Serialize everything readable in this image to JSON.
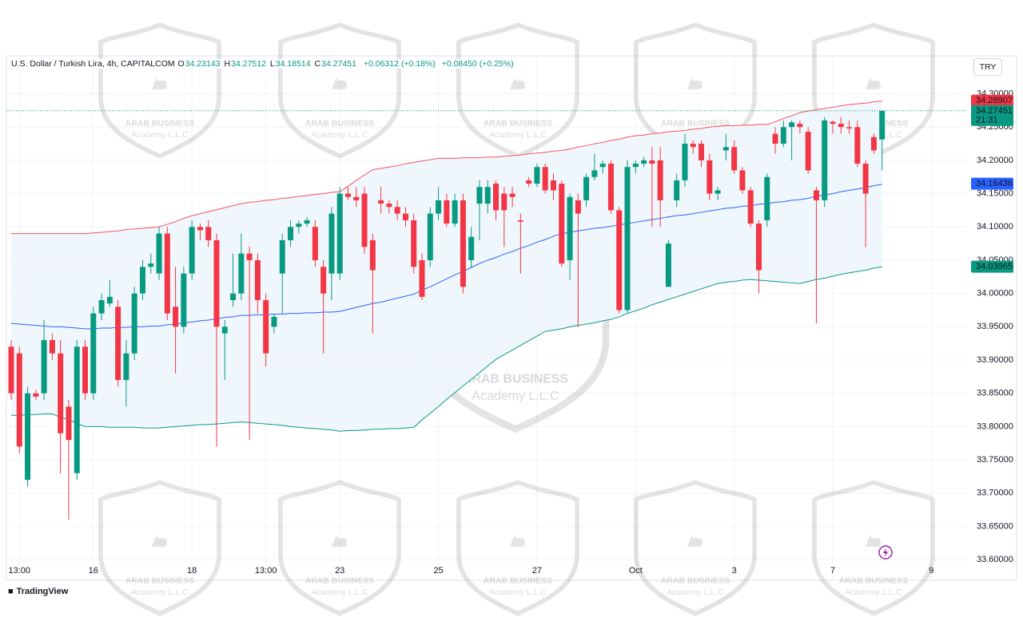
{
  "chart_data": {
    "type": "candlestick",
    "title": "U.S. Dollar / Turkish Lira, 4h, CAPITALCOM",
    "ohlc": [
      {
        "label": "O",
        "value": 34.23143
      },
      {
        "label": "H",
        "value": 34.27512
      },
      {
        "label": "L",
        "value": 34.18514
      },
      {
        "label": "C",
        "value": 34.27451
      }
    ],
    "changes": [
      "+0.06312 (+0.18%)",
      "+0.08450 (+0.25%)"
    ],
    "currency": "TRY",
    "brand": "TradingView",
    "watermark": {
      "logo": "AB",
      "name": "ARAB BUSINESS",
      "sub": "Academy L.L.C"
    },
    "categories": [
      null,
      "13:00",
      null,
      null,
      null,
      null,
      null,
      null,
      null,
      null,
      "16",
      null,
      null,
      null,
      null,
      null,
      null,
      null,
      null,
      null,
      null,
      null,
      "18",
      null,
      null,
      null,
      null,
      null,
      null,
      null,
      null,
      "13:00",
      null,
      null,
      null,
      null,
      null,
      null,
      null,
      null,
      "23",
      null,
      null,
      null,
      null,
      null,
      null,
      null,
      null,
      null,
      null,
      null,
      "25",
      null,
      null,
      null,
      null,
      null,
      null,
      null,
      null,
      null,
      null,
      null,
      "27",
      null,
      null,
      null,
      null,
      null,
      null,
      null,
      null,
      null,
      null,
      null,
      "Oct",
      null,
      null,
      null,
      null,
      null,
      null,
      null,
      null,
      null,
      null,
      null,
      "3",
      null,
      null,
      null,
      null,
      null,
      null,
      null,
      null,
      null,
      null,
      null,
      "7",
      null,
      null,
      null,
      null,
      null,
      null,
      null,
      null,
      null,
      null,
      null,
      "9"
    ],
    "candles": {
      "up_color": "#089981",
      "down_color": "#f23645",
      "open": [
        33.92,
        33.91,
        33.72,
        33.85,
        33.85,
        33.93,
        33.91,
        33.83,
        33.73,
        33.92,
        33.85,
        33.97,
        33.985,
        33.98,
        33.87,
        33.91,
        34.0,
        34.04,
        34.03,
        34.09,
        33.98,
        33.95,
        34.03,
        34.1,
        34.1,
        34.08,
        33.94,
        33.99,
        34.0,
        34.06,
        34.05,
        33.99,
        33.95,
        34.03,
        34.08,
        34.1,
        34.105,
        34.1,
        34.04,
        34.03,
        34.03,
        34.15,
        34.145,
        34.15,
        34.08,
        34.14,
        34.135,
        34.13,
        34.12,
        34.11,
        34.05,
        34.05,
        34.12,
        34.14,
        34.105,
        34.14,
        34.05,
        34.135,
        34.135,
        34.165,
        34.15,
        34.15,
        34.11,
        34.17,
        34.165,
        34.19,
        34.17,
        34.165,
        34.05,
        34.14,
        34.14,
        34.175,
        34.19,
        34.195,
        34.125,
        33.975,
        34.19,
        34.195,
        34.2,
        34.2,
        34.01,
        34.14,
        34.17,
        34.225,
        34.225,
        34.2,
        34.15,
        34.215,
        34.22,
        34.185,
        34.155,
        34.105,
        34.11,
        34.24,
        34.225,
        34.25,
        34.255,
        34.243,
        34.155,
        34.14,
        34.258,
        34.255,
        34.25,
        34.25,
        34.195,
        34.235,
        34.23143,
        null,
        null,
        null,
        null,
        null,
        null
      ],
      "high": [
        33.93,
        33.92,
        33.86,
        33.855,
        33.96,
        33.94,
        33.93,
        33.84,
        33.93,
        33.93,
        33.98,
        34.0,
        34.02,
        33.99,
        33.93,
        34.01,
        34.05,
        34.06,
        34.1,
        34.1,
        34.04,
        34.04,
        34.11,
        34.105,
        34.11,
        34.09,
        33.96,
        34.06,
        34.09,
        34.07,
        34.06,
        34.0,
        33.97,
        34.09,
        34.11,
        34.11,
        34.115,
        34.11,
        34.05,
        34.13,
        34.16,
        34.16,
        34.16,
        34.16,
        34.09,
        34.16,
        34.14,
        34.14,
        34.13,
        34.12,
        34.06,
        34.13,
        34.16,
        34.15,
        34.15,
        34.15,
        34.1,
        34.17,
        34.17,
        34.17,
        34.16,
        34.16,
        34.12,
        34.175,
        34.195,
        34.195,
        34.18,
        34.17,
        34.15,
        34.15,
        34.18,
        34.21,
        34.2,
        34.2,
        34.13,
        34.2,
        34.2,
        34.205,
        34.22,
        34.22,
        34.08,
        34.18,
        34.24,
        34.23,
        34.23,
        34.21,
        34.16,
        34.24,
        34.23,
        34.19,
        34.16,
        34.11,
        34.18,
        34.25,
        34.26,
        34.26,
        34.26,
        34.25,
        34.16,
        34.265,
        34.26,
        34.265,
        34.26,
        34.26,
        34.2,
        34.24,
        34.27512,
        null,
        null,
        null,
        null,
        null,
        null
      ],
      "low": [
        33.84,
        33.76,
        33.71,
        33.84,
        33.84,
        33.9,
        33.73,
        33.66,
        33.72,
        33.84,
        33.84,
        33.96,
        33.98,
        33.86,
        33.83,
        33.9,
        33.99,
        34.03,
        34.02,
        33.96,
        33.88,
        33.94,
        34.02,
        34.08,
        34.07,
        33.77,
        33.87,
        33.98,
        33.99,
        33.78,
        33.97,
        33.89,
        33.94,
        33.97,
        34.07,
        34.09,
        34.1,
        34.04,
        33.91,
        33.99,
        34.02,
        34.14,
        34.13,
        34.06,
        33.94,
        34.12,
        34.12,
        34.11,
        34.1,
        34.03,
        33.99,
        34.04,
        34.11,
        34.1,
        34.1,
        34.0,
        34.04,
        34.08,
        34.12,
        34.11,
        34.07,
        34.13,
        34.03,
        34.16,
        34.16,
        34.15,
        34.14,
        34.04,
        34.02,
        33.95,
        34.13,
        34.17,
        34.18,
        34.12,
        33.97,
        33.97,
        34.18,
        34.19,
        34.1,
        34.1,
        34.01,
        34.13,
        34.16,
        34.21,
        34.19,
        34.14,
        34.14,
        34.2,
        34.18,
        34.15,
        34.1,
        34.0,
        34.1,
        34.21,
        34.22,
        34.2,
        34.24,
        34.18,
        33.955,
        34.13,
        34.24,
        34.24,
        34.24,
        34.19,
        34.07,
        34.21,
        34.18514,
        null,
        null,
        null,
        null,
        null,
        null
      ],
      "close": [
        33.85,
        33.77,
        33.85,
        33.845,
        33.93,
        33.91,
        33.79,
        33.78,
        33.92,
        33.85,
        33.97,
        33.99,
        33.995,
        33.87,
        33.91,
        34.0,
        34.04,
        34.045,
        34.09,
        33.97,
        33.95,
        34.03,
        34.1,
        34.095,
        34.08,
        33.95,
        33.95,
        34.0,
        34.06,
        34.05,
        33.99,
        33.91,
        33.965,
        34.08,
        34.1,
        34.105,
        34.11,
        34.05,
        34.0,
        34.12,
        34.15,
        34.145,
        34.14,
        34.07,
        34.035,
        34.135,
        34.13,
        34.12,
        34.11,
        34.04,
        33.995,
        34.12,
        34.14,
        34.105,
        34.14,
        34.01,
        34.085,
        34.16,
        34.16,
        34.125,
        34.125,
        34.145,
        34.108,
        34.165,
        34.19,
        34.155,
        34.155,
        34.045,
        34.145,
        34.12,
        34.175,
        34.185,
        34.195,
        34.125,
        33.975,
        34.19,
        34.195,
        34.2,
        34.195,
        34.14,
        34.075,
        34.17,
        34.225,
        34.22,
        34.2,
        34.15,
        34.155,
        34.22,
        34.185,
        34.155,
        34.105,
        34.035,
        34.175,
        34.225,
        34.25,
        34.257,
        34.25,
        34.185,
        34.14,
        34.26,
        34.255,
        34.25,
        34.248,
        34.195,
        34.15,
        34.215,
        34.27451,
        null,
        null,
        null,
        null,
        null,
        null
      ]
    },
    "band_fill": "#eef6fc",
    "lines": [
      {
        "color": "#f7525f",
        "values": [
          34.09,
          34.09,
          34.09,
          34.09,
          34.09,
          34.09,
          34.09,
          34.09,
          34.09,
          34.09,
          34.091,
          34.092,
          34.093,
          34.094,
          34.096,
          34.097,
          34.098,
          34.099,
          34.1,
          34.104,
          34.108,
          34.113,
          34.117,
          34.12,
          34.123,
          34.126,
          34.129,
          34.132,
          34.135,
          34.137,
          34.138,
          34.14,
          34.141,
          34.143,
          34.144,
          34.146,
          34.147,
          34.149,
          34.15,
          34.152,
          34.153,
          34.161,
          34.17,
          34.178,
          34.186,
          34.188,
          34.19,
          34.192,
          34.195,
          34.197,
          34.199,
          34.201,
          34.203,
          34.203,
          34.203,
          34.204,
          34.204,
          34.204,
          34.205,
          34.205,
          34.206,
          34.207,
          34.208,
          34.21,
          34.211,
          34.212,
          34.214,
          34.215,
          34.217,
          34.22,
          34.222,
          34.225,
          34.227,
          34.23,
          34.232,
          34.235,
          34.237,
          34.238,
          34.24,
          34.241,
          34.243,
          34.244,
          34.245,
          34.247,
          34.248,
          34.25,
          34.251,
          34.252,
          34.252,
          34.253,
          34.253,
          34.254,
          34.254,
          34.258,
          34.263,
          34.267,
          34.272,
          34.274,
          34.276,
          34.278,
          34.28,
          34.282,
          34.284,
          34.285,
          34.286,
          34.288,
          34.289,
          null,
          null,
          null,
          null,
          null,
          null
        ]
      },
      {
        "color": "#2962ff",
        "values": [
          33.955,
          33.954,
          33.953,
          33.952,
          33.951,
          33.95,
          33.95,
          33.949,
          33.948,
          33.947,
          33.947,
          33.948,
          33.948,
          33.949,
          33.949,
          33.95,
          33.95,
          33.951,
          33.951,
          33.953,
          33.954,
          33.956,
          33.957,
          33.959,
          33.96,
          33.962,
          33.964,
          33.965,
          33.967,
          33.967,
          33.968,
          33.968,
          33.969,
          33.969,
          33.97,
          33.97,
          33.971,
          33.971,
          33.972,
          33.972,
          33.973,
          33.976,
          33.979,
          33.982,
          33.985,
          33.987,
          33.99,
          33.993,
          33.996,
          33.999,
          34.005,
          34.01,
          34.016,
          34.022,
          34.028,
          34.033,
          34.039,
          34.045,
          34.05,
          34.054,
          34.059,
          34.063,
          34.068,
          34.072,
          34.077,
          34.081,
          34.086,
          34.09,
          34.092,
          34.094,
          34.096,
          34.098,
          34.099,
          34.101,
          34.103,
          34.105,
          34.107,
          34.109,
          34.111,
          34.113,
          34.115,
          34.117,
          34.118,
          34.12,
          34.122,
          34.124,
          34.126,
          34.128,
          34.129,
          34.131,
          34.132,
          34.134,
          34.135,
          34.137,
          34.138,
          34.14,
          34.141,
          34.143,
          34.146,
          34.148,
          34.15,
          34.153,
          34.155,
          34.157,
          34.159,
          34.162,
          34.164,
          null,
          null,
          null,
          null,
          null,
          null
        ]
      },
      {
        "color": "#089981",
        "values": [
          33.817,
          33.817,
          33.818,
          33.818,
          33.819,
          33.819,
          33.814,
          33.81,
          33.805,
          33.8,
          33.8,
          33.8,
          33.799,
          33.799,
          33.799,
          33.799,
          33.798,
          33.798,
          33.798,
          33.799,
          33.8,
          33.801,
          33.802,
          33.803,
          33.803,
          33.804,
          33.805,
          33.806,
          33.807,
          33.806,
          33.805,
          33.804,
          33.803,
          33.802,
          33.8,
          33.799,
          33.798,
          33.797,
          33.796,
          33.795,
          33.793,
          33.794,
          33.794,
          33.795,
          33.796,
          33.796,
          33.797,
          33.797,
          33.798,
          33.799,
          33.81,
          33.82,
          33.83,
          33.841,
          33.851,
          33.861,
          33.871,
          33.881,
          33.891,
          33.901,
          33.908,
          33.915,
          33.922,
          33.929,
          33.936,
          33.943,
          33.945,
          33.947,
          33.95,
          33.952,
          33.954,
          33.956,
          33.959,
          33.961,
          33.965,
          33.97,
          33.974,
          33.978,
          33.983,
          33.987,
          33.991,
          33.995,
          33.999,
          34.003,
          34.007,
          34.011,
          34.015,
          34.017,
          34.018,
          34.02,
          34.021,
          34.02,
          34.019,
          34.018,
          34.017,
          34.016,
          34.015,
          34.018,
          34.021,
          34.023,
          34.026,
          34.029,
          34.031,
          34.033,
          34.035,
          34.038,
          34.04,
          null,
          null,
          null,
          null,
          null,
          null
        ]
      }
    ],
    "price_tags": [
      {
        "value": 34.28907,
        "color": "#f23645"
      },
      {
        "value": 34.27451,
        "color": "#089981",
        "countdown": "21:31",
        "dotted_line": true
      },
      {
        "value": 34.16436,
        "color": "#2962ff"
      },
      {
        "value": 34.03965,
        "color": "#089981"
      }
    ],
    "ylim": [
      33.569,
      34.357
    ],
    "yticks": [
      {
        "value": 33.6,
        "label": "33.60000"
      },
      {
        "value": 33.65,
        "label": "33.65000"
      },
      {
        "value": 33.7,
        "label": "33.70000"
      },
      {
        "value": 33.75,
        "label": "33.75000"
      },
      {
        "value": 33.8,
        "label": "33.80000"
      },
      {
        "value": 33.85,
        "label": "33.85000"
      },
      {
        "value": 33.9,
        "label": "33.90000"
      },
      {
        "value": 33.95,
        "label": "33.95000"
      },
      {
        "value": 34.0,
        "label": "34.00000"
      },
      {
        "value": 34.05,
        "label": "34.05000"
      },
      {
        "value": 34.1,
        "label": "34.10000"
      },
      {
        "value": 34.15,
        "label": "34.15000"
      },
      {
        "value": 34.2,
        "label": "34.20000"
      },
      {
        "value": 34.25,
        "label": "34.25000"
      },
      {
        "value": 34.3,
        "label": "34.30000"
      }
    ],
    "grid": true
  }
}
